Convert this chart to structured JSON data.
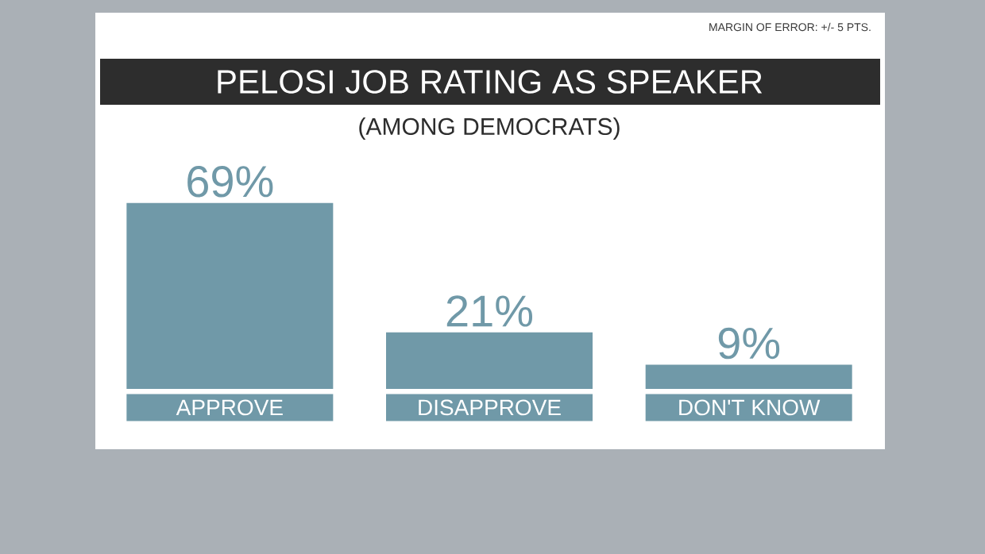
{
  "chart_data": {
    "type": "bar",
    "title": "PELOSI JOB RATING AS SPEAKER",
    "subtitle": "(AMONG DEMOCRATS)",
    "annotations": [
      "MARGIN OF ERROR: +/- 5 PTS."
    ],
    "categories": [
      "APPROVE",
      "DISAPPROVE",
      "DON'T KNOW"
    ],
    "values": [
      69,
      21,
      9
    ],
    "value_labels": [
      "69%",
      "21%",
      "9%"
    ],
    "color": "#7099a8"
  }
}
